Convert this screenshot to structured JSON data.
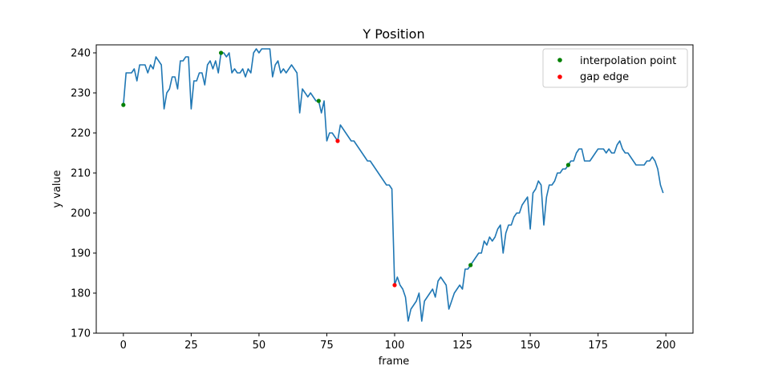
{
  "chart_data": {
    "type": "line",
    "title": "Y Position",
    "xlabel": "frame",
    "ylabel": "y value",
    "xlim": [
      -10,
      210
    ],
    "ylim": [
      170,
      242
    ],
    "xticks": [
      0,
      25,
      50,
      75,
      100,
      125,
      150,
      175,
      200
    ],
    "yticks": [
      170,
      180,
      190,
      200,
      210,
      220,
      230,
      240
    ],
    "legend_position": "top-right",
    "series": [
      {
        "name": "y value",
        "color": "#1f77b4",
        "x": [
          0,
          1,
          2,
          3,
          4,
          5,
          6,
          7,
          8,
          9,
          10,
          11,
          12,
          13,
          14,
          15,
          16,
          17,
          18,
          19,
          20,
          21,
          22,
          23,
          24,
          25,
          26,
          27,
          28,
          29,
          30,
          31,
          32,
          33,
          34,
          35,
          36,
          37,
          38,
          39,
          40,
          41,
          42,
          43,
          44,
          45,
          46,
          47,
          48,
          49,
          50,
          51,
          52,
          53,
          54,
          55,
          56,
          57,
          58,
          59,
          60,
          61,
          62,
          63,
          64,
          65,
          66,
          67,
          68,
          69,
          70,
          71,
          72,
          73,
          74,
          75,
          76,
          77,
          78,
          79,
          80,
          81,
          82,
          83,
          84,
          85,
          86,
          87,
          88,
          89,
          90,
          91,
          92,
          93,
          94,
          95,
          96,
          97,
          98,
          99,
          100,
          101,
          102,
          103,
          104,
          105,
          106,
          107,
          108,
          109,
          110,
          111,
          112,
          113,
          114,
          115,
          116,
          117,
          118,
          119,
          120,
          121,
          122,
          123,
          124,
          125,
          126,
          127,
          128,
          129,
          130,
          131,
          132,
          133,
          134,
          135,
          136,
          137,
          138,
          139,
          140,
          141,
          142,
          143,
          144,
          145,
          146,
          147,
          148,
          149,
          150,
          151,
          152,
          153,
          154,
          155,
          156,
          157,
          158,
          159,
          160,
          161,
          162,
          163,
          164,
          165,
          166,
          167,
          168,
          169,
          170,
          171,
          172,
          173,
          174,
          175,
          176,
          177,
          178,
          179,
          180,
          181,
          182,
          183,
          184,
          185,
          186,
          187,
          188,
          189,
          190,
          191,
          192,
          193,
          194,
          195,
          196,
          197,
          198,
          199
        ],
        "y": [
          227,
          235,
          235,
          235,
          236,
          233,
          237,
          237,
          237,
          235,
          237,
          236,
          239,
          238,
          237,
          226,
          230,
          231,
          234,
          234,
          231,
          238,
          238,
          239,
          239,
          226,
          233,
          233,
          235,
          235,
          232,
          237,
          238,
          236,
          238,
          235,
          240,
          240,
          239,
          240,
          235,
          236,
          235,
          235,
          236,
          234,
          236,
          235,
          240,
          241,
          240,
          241,
          241,
          241,
          241,
          234,
          237,
          238,
          235,
          236,
          235,
          236,
          237,
          236,
          235,
          225,
          231,
          230,
          229,
          230,
          229,
          228,
          228,
          225,
          228,
          218,
          220,
          220,
          219,
          218,
          222,
          221,
          220,
          219,
          218,
          218,
          217,
          216,
          215,
          214,
          213,
          213,
          212,
          211,
          210,
          209,
          208,
          207,
          207,
          206,
          182,
          184,
          182,
          181,
          179,
          173,
          176,
          177,
          178,
          180,
          173,
          178,
          179,
          180,
          181,
          179,
          183,
          184,
          183,
          182,
          176,
          178,
          180,
          181,
          182,
          181,
          186,
          186,
          187,
          188,
          189,
          190,
          190,
          193,
          192,
          194,
          193,
          194,
          196,
          197,
          190,
          195,
          197,
          197,
          199,
          200,
          200,
          202,
          203,
          204,
          196,
          205,
          206,
          208,
          207,
          197,
          204,
          207,
          207,
          208,
          210,
          210,
          211,
          211,
          212,
          213,
          213,
          215,
          216,
          216,
          213,
          213,
          213,
          214,
          215,
          216,
          216,
          216,
          215,
          216,
          215,
          215,
          217,
          218,
          216,
          215,
          215,
          214,
          213,
          212,
          212,
          212,
          212,
          213,
          213,
          214,
          213,
          211,
          207,
          205
        ]
      },
      {
        "name": "interpolation point",
        "color": "#008000",
        "marker": "dot",
        "x": [
          0,
          36,
          72,
          128,
          164
        ],
        "y": [
          227,
          240,
          228,
          187,
          212
        ]
      },
      {
        "name": "gap edge",
        "color": "#ff0000",
        "marker": "dot",
        "x": [
          79,
          100
        ],
        "y": [
          218,
          182
        ]
      }
    ],
    "legend": [
      "interpolation point",
      "gap edge"
    ]
  }
}
